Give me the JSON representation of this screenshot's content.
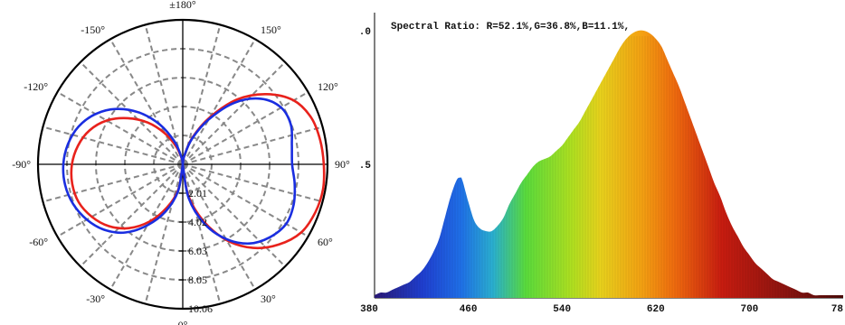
{
  "chart_data": [
    {
      "type": "polar",
      "angle_labels": [
        {
          "deg": 180,
          "text": "±180°"
        },
        {
          "deg": 150,
          "text": "150°"
        },
        {
          "deg": 120,
          "text": "120°"
        },
        {
          "deg": 90,
          "text": "90°"
        },
        {
          "deg": 60,
          "text": "60°"
        },
        {
          "deg": 30,
          "text": "30°"
        },
        {
          "deg": 0,
          "text": "0°"
        },
        {
          "deg": -30,
          "text": "-30°"
        },
        {
          "deg": -60,
          "text": "-60°"
        },
        {
          "deg": -90,
          "text": "-90°"
        },
        {
          "deg": -120,
          "text": "-120°"
        },
        {
          "deg": -150,
          "text": "-150°"
        }
      ],
      "radial_ticks": [
        "2.01",
        "4.02",
        "6.03",
        "8.05",
        "10.06"
      ],
      "rmax": 10.06,
      "grid": true,
      "series": [
        {
          "color": "#e8221c",
          "angles": [
            0,
            10,
            20,
            30,
            40,
            50,
            60,
            70,
            80,
            90,
            100,
            110,
            120,
            130,
            140,
            150,
            160,
            170,
            180
          ],
          "right": [
            0,
            2.2,
            4.2,
            6.1,
            7.6,
            8.7,
            9.5,
            9.8,
            9.9,
            9.8,
            9.7,
            9.5,
            8.9,
            7.6,
            5.9,
            3.8,
            2.0,
            0.6,
            0
          ],
          "left": [
            0,
            1.8,
            3.2,
            4.6,
            5.8,
            6.7,
            7.3,
            7.7,
            7.8,
            7.7,
            7.4,
            6.9,
            6.1,
            5.0,
            3.8,
            2.5,
            1.3,
            0.4,
            0
          ]
        },
        {
          "color": "#1a2ee0",
          "angles": [
            0,
            10,
            20,
            30,
            40,
            50,
            60,
            70,
            80,
            90,
            100,
            110,
            120,
            130,
            140,
            150,
            160,
            170,
            180
          ],
          "right": [
            0,
            2.4,
            4.4,
            6.0,
            7.2,
            7.9,
            8.3,
            8.2,
            7.9,
            7.6,
            7.7,
            8.0,
            7.9,
            7.1,
            5.6,
            3.6,
            1.9,
            0.6,
            0
          ],
          "left": [
            0,
            1.9,
            3.5,
            4.9,
            6.2,
            7.1,
            7.7,
            8.1,
            8.3,
            8.3,
            8.1,
            7.7,
            7.0,
            6.0,
            4.7,
            3.2,
            1.7,
            0.5,
            0
          ]
        }
      ]
    },
    {
      "type": "area",
      "title": "Spectral Ratio:  R=52.1%,G=36.8%,B=11.1%,",
      "x_ticks": [
        "380",
        "460",
        "540",
        "620",
        "700",
        "78"
      ],
      "y_ticks": [
        ".0",
        ".5"
      ],
      "xlim": [
        380,
        780
      ],
      "ylim": [
        0,
        1.0
      ],
      "x": [
        380,
        385,
        390,
        395,
        400,
        405,
        410,
        415,
        420,
        425,
        430,
        435,
        440,
        445,
        450,
        453,
        455,
        460,
        465,
        470,
        475,
        480,
        485,
        490,
        495,
        500,
        505,
        510,
        515,
        520,
        525,
        530,
        535,
        540,
        545,
        550,
        555,
        560,
        565,
        570,
        575,
        580,
        585,
        590,
        595,
        600,
        605,
        610,
        615,
        620,
        625,
        630,
        635,
        640,
        645,
        650,
        655,
        660,
        665,
        670,
        675,
        680,
        685,
        690,
        695,
        700,
        705,
        710,
        715,
        720,
        725,
        730,
        735,
        740,
        745,
        750,
        755,
        760,
        765,
        770,
        775,
        780
      ],
      "y": [
        0.01,
        0.02,
        0.02,
        0.03,
        0.04,
        0.05,
        0.06,
        0.08,
        0.1,
        0.13,
        0.17,
        0.22,
        0.3,
        0.38,
        0.44,
        0.45,
        0.44,
        0.36,
        0.29,
        0.26,
        0.25,
        0.25,
        0.27,
        0.3,
        0.35,
        0.39,
        0.43,
        0.46,
        0.49,
        0.51,
        0.52,
        0.53,
        0.55,
        0.57,
        0.6,
        0.63,
        0.66,
        0.7,
        0.74,
        0.78,
        0.82,
        0.86,
        0.9,
        0.94,
        0.97,
        0.99,
        1.0,
        1.0,
        0.99,
        0.97,
        0.94,
        0.89,
        0.84,
        0.79,
        0.73,
        0.67,
        0.61,
        0.55,
        0.49,
        0.43,
        0.38,
        0.32,
        0.27,
        0.23,
        0.19,
        0.16,
        0.13,
        0.11,
        0.09,
        0.07,
        0.06,
        0.05,
        0.04,
        0.03,
        0.02,
        0.02,
        0.01,
        0.01,
        0.01,
        0.01,
        0.01,
        0.01
      ],
      "palette": {
        "violet": "#2a1a7a",
        "blue": "#1f5fe0",
        "cyan": "#2ab0d0",
        "green": "#5adc3c",
        "yellow": "#e8d21c",
        "orange": "#f07a10",
        "red": "#c81c10",
        "darkred": "#5a0c0a"
      }
    }
  ]
}
